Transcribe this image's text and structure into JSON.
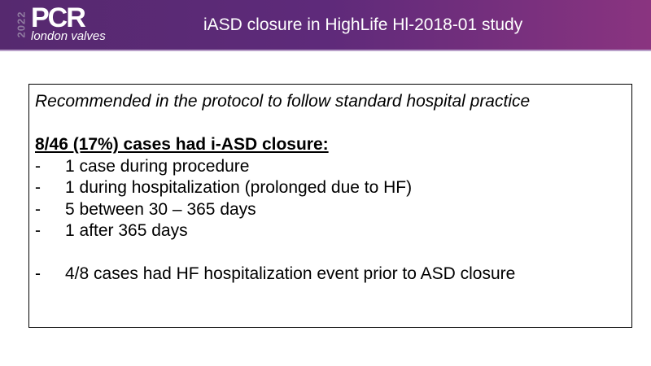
{
  "header": {
    "logo": {
      "year": "2022",
      "brand": "PCR",
      "subtitle": "london valves"
    },
    "title": "iASD closure in HighLife Hl-2018-01  study"
  },
  "content": {
    "intro": "Recommended in the protocol to follow standard hospital practice",
    "heading": "8/46 (17%) cases had i-ASD closure:",
    "items": [
      "1 case during procedure",
      "1 during hospitalization (prolonged due to HF)",
      "5 between 30 – 365 days",
      "1 after 365 days"
    ],
    "note": "4/8 cases had HF hospitalization event prior to ASD closure",
    "bullet": "-"
  },
  "colors": {
    "header": "#5e2a7a",
    "header_right": "#8a3480",
    "logo_year": "#8f7aa0"
  }
}
